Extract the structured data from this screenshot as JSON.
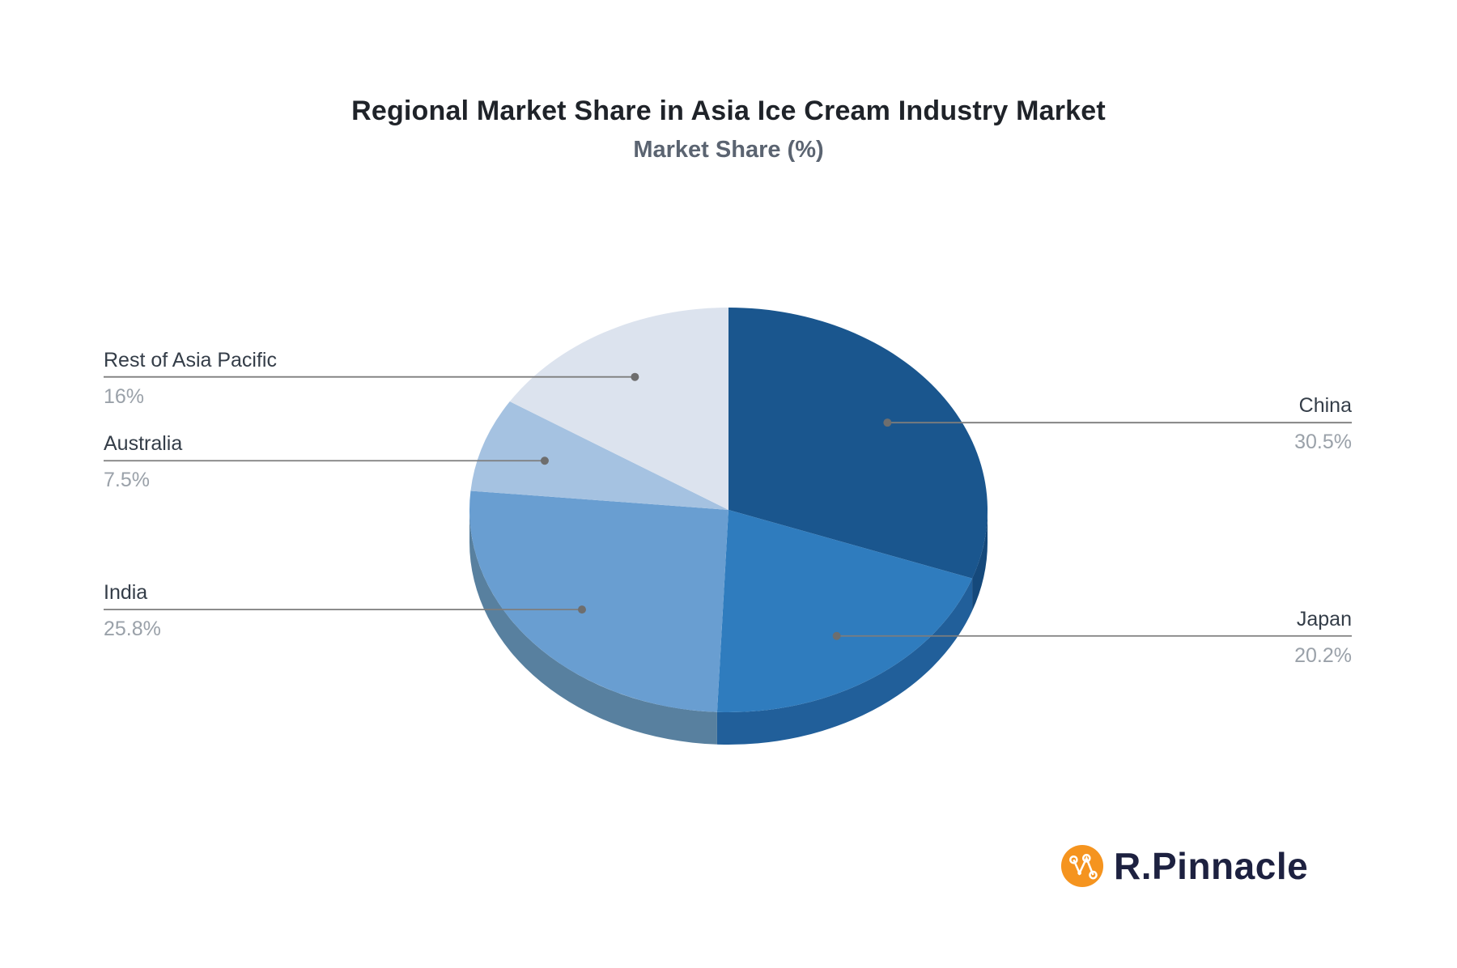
{
  "header": {
    "title": "Regional Market Share in Asia Ice Cream Industry Market",
    "subtitle": "Market Share (%)"
  },
  "chart_data": {
    "type": "pie",
    "style": "3d",
    "title": "Regional Market Share in Asia Ice Cream Industry Market",
    "subtitle": "Market Share (%)",
    "unit": "%",
    "start_angle_deg": 0,
    "direction": "clockwise",
    "legend": "none",
    "slices": [
      {
        "id": "china",
        "label": "China",
        "value": 30.5,
        "display": "30.5%",
        "color": "#1a568e",
        "side_color": "#15497b",
        "label_side": "right"
      },
      {
        "id": "japan",
        "label": "Japan",
        "value": 20.2,
        "display": "20.2%",
        "color": "#2f7cbe",
        "side_color": "#215f9a",
        "label_side": "right"
      },
      {
        "id": "india",
        "label": "India",
        "value": 25.8,
        "display": "25.8%",
        "color": "#699ed1",
        "side_color": "#58809f",
        "label_side": "left"
      },
      {
        "id": "australia",
        "label": "Australia",
        "value": 7.5,
        "display": "7.5%",
        "color": "#a5c2e1",
        "side_color": "#8fabc9",
        "label_side": "left"
      },
      {
        "id": "rest-of-asia-pacific",
        "label": "Rest of Asia Pacific",
        "value": 16,
        "display": "16%",
        "color": "#dce3ee",
        "side_color": "#c3ccda",
        "label_side": "left"
      }
    ],
    "leader_line_color": "#7d7d7d",
    "leader_dot_color": "#6e6e6e",
    "label_name_color": "#343d48",
    "label_value_color": "#9aa1a9"
  },
  "branding": {
    "logo_text": "R.Pinnacle",
    "logo_icon": "network-nodes-icon",
    "logo_icon_color": "#f5941f",
    "logo_text_color": "#1d2140"
  }
}
